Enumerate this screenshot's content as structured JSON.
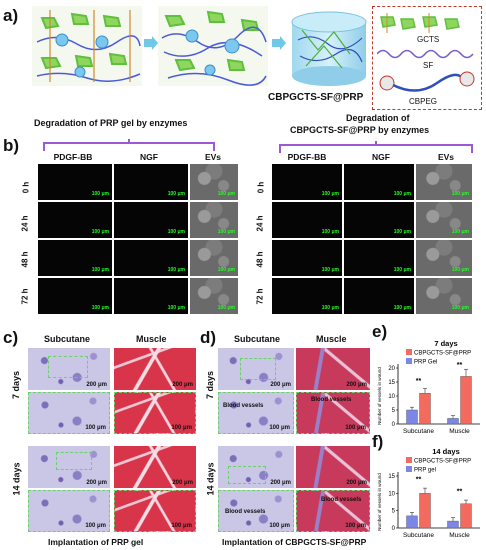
{
  "panels": {
    "a": "a)",
    "b": "b)",
    "c": "c)",
    "d": "d)",
    "e": "e)",
    "f": "f)"
  },
  "schematic": {
    "product_label": "CBPGCTS-SF@PRP",
    "legend": {
      "gcts": "GCTS",
      "sf": "SF",
      "cbpeg": "CBPEG"
    }
  },
  "degradation": {
    "left_title": "Degradation of PRP gel by enzymes",
    "right_title_line1": "Degradation of",
    "right_title_line2": "CBPGCTS-SF@PRP by enzymes",
    "columns": [
      "PDGF-BB",
      "NGF",
      "EVs"
    ],
    "rows": [
      "0 h",
      "24 h",
      "48 h",
      "72 h"
    ],
    "scale_bar": "100 μm"
  },
  "histology_c": {
    "col_left": "Subcutane",
    "col_right": "Muscle",
    "row_top": "7 days",
    "row_bottom": "14 days",
    "scale_large": "200 μm",
    "scale_small": "100 μm",
    "caption": "Implantation of PRP gel"
  },
  "histology_d": {
    "col_left": "Subcutane",
    "col_right": "Muscle",
    "row_top": "7 days",
    "row_bottom": "14 days",
    "scale_large": "200 μm",
    "scale_small": "100 μm",
    "caption": "Implantation of CBPGCTS-SF@PRP",
    "annot_blood": "Blood vessels"
  },
  "chart_data": [
    {
      "type": "bar",
      "title": "7 days",
      "ylabel": "Number of vessels in wound",
      "categories": [
        "Subcutane",
        "Muscle"
      ],
      "ylim": [
        0,
        20
      ],
      "yticks": [
        0,
        5,
        10,
        15,
        20
      ],
      "series": [
        {
          "name": "CBPGCTS-SF@PRP",
          "color": "#f26b5e",
          "values": [
            11,
            17
          ]
        },
        {
          "name": "PRP Gel",
          "color": "#7b86e6",
          "values": [
            5,
            2
          ]
        }
      ],
      "annotations": [
        "**",
        "**"
      ]
    },
    {
      "type": "bar",
      "title": "14 days",
      "ylabel": "Number of vessels in wound",
      "categories": [
        "Subcutane",
        "Muscle"
      ],
      "ylim": [
        0,
        15
      ],
      "yticks": [
        0,
        5,
        10,
        15
      ],
      "series": [
        {
          "name": "CBPGCTS-SF@PRP",
          "color": "#f26b5e",
          "values": [
            10,
            7
          ]
        },
        {
          "name": "PRP gel",
          "color": "#7b86e6",
          "values": [
            3.5,
            2
          ]
        }
      ],
      "annotations": [
        "**",
        "**"
      ]
    }
  ]
}
